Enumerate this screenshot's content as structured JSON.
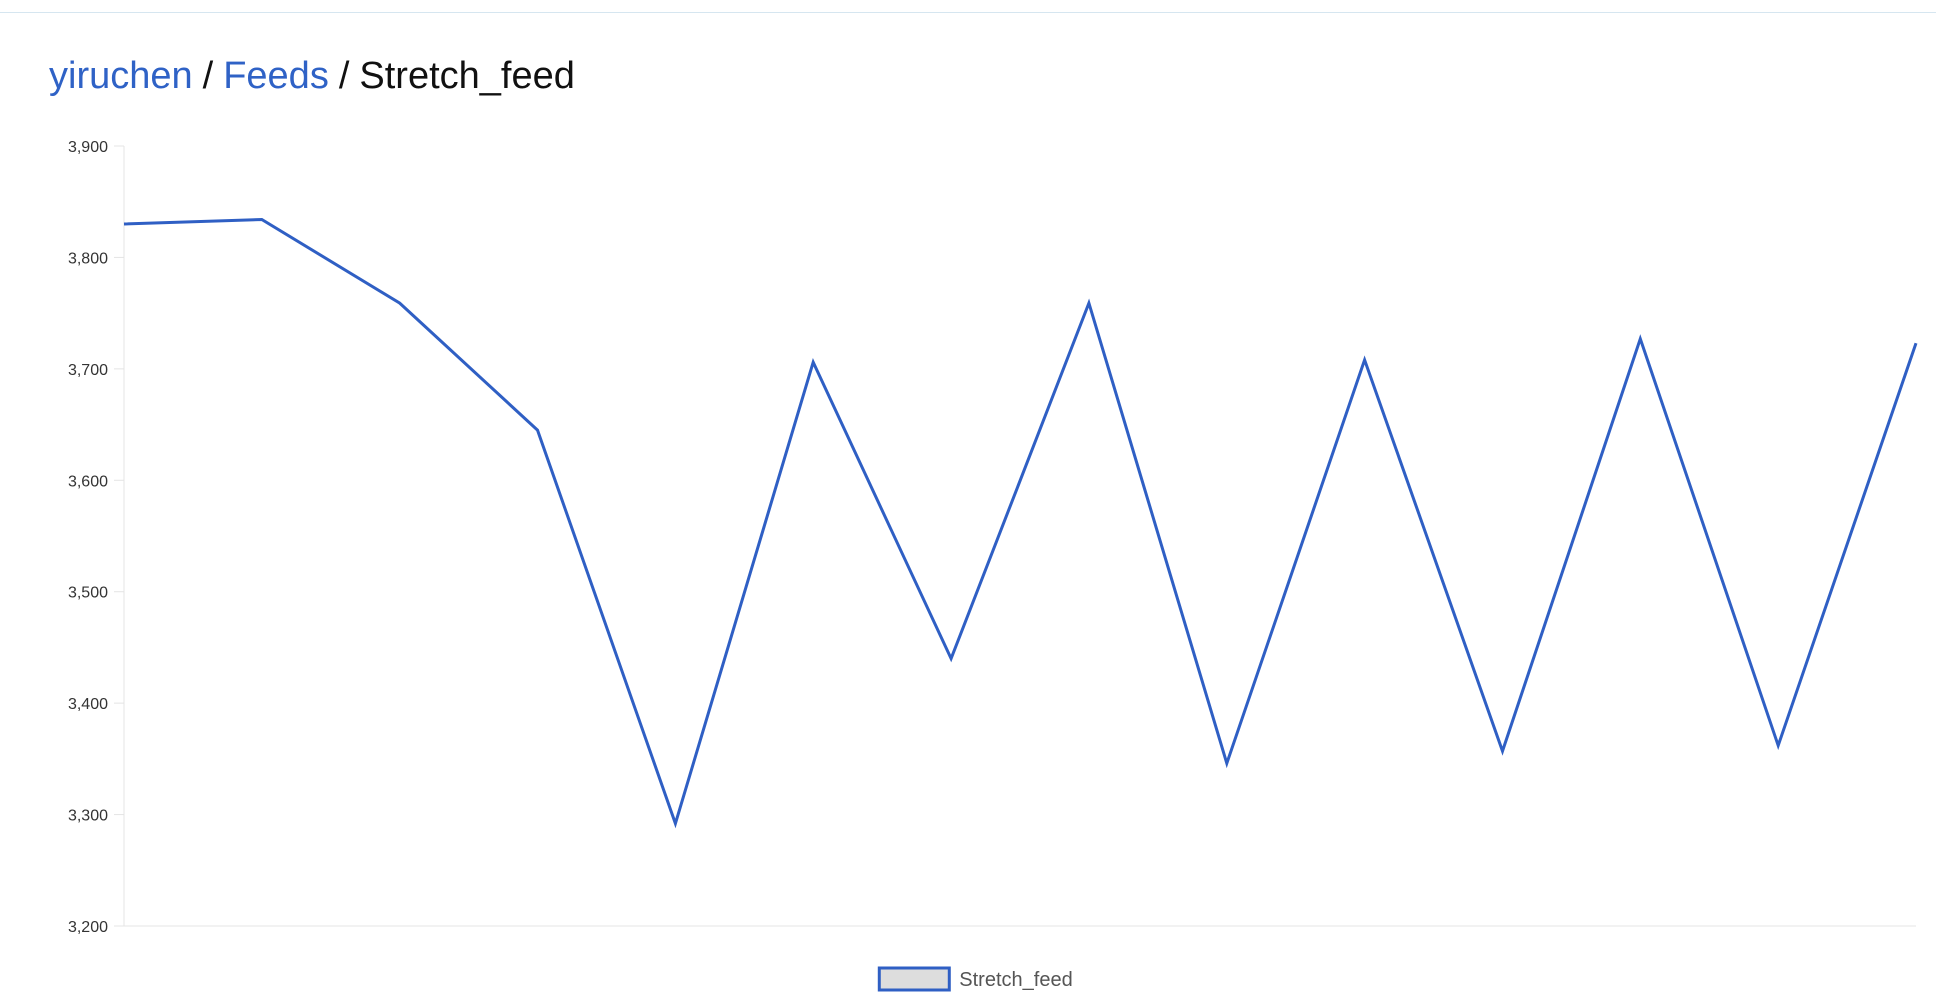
{
  "breadcrumb": {
    "user": "yiruchen",
    "separator": "/",
    "section": "Feeds",
    "current": "Stretch_feed",
    "link_color": "#2f62c6"
  },
  "chart_data": {
    "type": "line",
    "title": "",
    "xlabel": "",
    "ylabel": "",
    "ylim": [
      3200,
      3900
    ],
    "yticks": [
      3200,
      3300,
      3400,
      3500,
      3600,
      3700,
      3800,
      3900
    ],
    "ytick_labels": [
      "3,200",
      "3,300",
      "3,400",
      "3,500",
      "3,600",
      "3,700",
      "3,800",
      "3,900"
    ],
    "grid": false,
    "legend": "bottom-center",
    "series": [
      {
        "name": "Stretch_feed",
        "color": "#2f5fc4",
        "fill": "#dddddd",
        "values": [
          3830,
          3834,
          3759,
          3645,
          3292,
          3706,
          3440,
          3759,
          3346,
          3708,
          3357,
          3727,
          3362,
          3723
        ]
      }
    ]
  }
}
